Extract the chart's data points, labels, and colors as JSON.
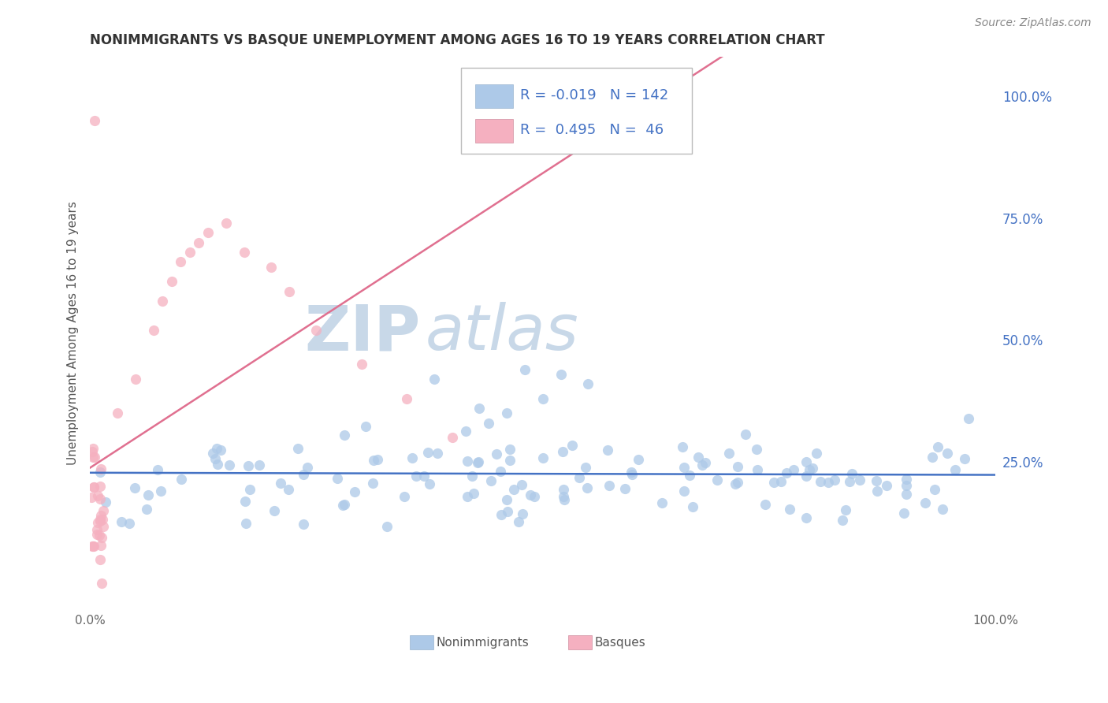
{
  "title": "NONIMMIGRANTS VS BASQUE UNEMPLOYMENT AMONG AGES 16 TO 19 YEARS CORRELATION CHART",
  "source": "Source: ZipAtlas.com",
  "ylabel": "Unemployment Among Ages 16 to 19 years",
  "xlim": [
    0.0,
    1.0
  ],
  "ylim": [
    -0.05,
    1.08
  ],
  "y_tick_positions": [
    0.25,
    0.5,
    0.75,
    1.0
  ],
  "y_tick_labels": [
    "25.0%",
    "50.0%",
    "75.0%",
    "100.0%"
  ],
  "blue_R": -0.019,
  "blue_N": 142,
  "pink_R": 0.495,
  "pink_N": 46,
  "blue_color": "#adc9e8",
  "pink_color": "#f5b0c0",
  "blue_line_color": "#4472c4",
  "pink_line_color": "#e07090",
  "legend_text_color": "#4472c4",
  "grid_color": "#cccccc",
  "background_color": "#ffffff",
  "watermark_zip_color": "#c8d8e8",
  "watermark_atlas_color": "#c8d8e8"
}
